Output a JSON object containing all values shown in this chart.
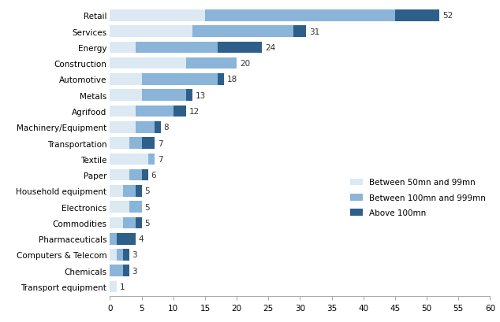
{
  "categories": [
    "Retail",
    "Services",
    "Energy",
    "Construction",
    "Automotive",
    "Metals",
    "Agrifood",
    "Machinery/Equipment",
    "Transportation",
    "Textile",
    "Paper",
    "Household equipment",
    "Electronics",
    "Commodities",
    "Pharmaceuticals",
    "Computers & Telecom",
    "Chemicals",
    "Transport equipment"
  ],
  "totals": [
    52,
    31,
    24,
    20,
    18,
    13,
    12,
    8,
    7,
    7,
    6,
    5,
    5,
    5,
    4,
    3,
    3,
    1
  ],
  "seg1": [
    15,
    13,
    4,
    12,
    5,
    5,
    4,
    4,
    3,
    6,
    3,
    2,
    3,
    2,
    0,
    1,
    0,
    1
  ],
  "seg2": [
    30,
    16,
    13,
    8,
    12,
    7,
    6,
    3,
    2,
    1,
    2,
    2,
    2,
    2,
    1,
    1,
    2,
    0
  ],
  "seg3": [
    7,
    2,
    7,
    0,
    1,
    1,
    2,
    1,
    2,
    0,
    1,
    1,
    0,
    1,
    3,
    1,
    1,
    0
  ],
  "color1": "#dce9f3",
  "color2": "#8ab4d8",
  "color3": "#2e5f8a",
  "legend_labels": [
    "Between 50mn and 99mn",
    "Between 100mn and 999mn",
    "Above 100mn"
  ],
  "xlim": [
    0,
    60
  ],
  "xticks": [
    0,
    5,
    10,
    15,
    20,
    25,
    30,
    35,
    40,
    45,
    50,
    55,
    60
  ],
  "bar_height": 0.72,
  "annotation_fontsize": 7.5,
  "label_fontsize": 7.5,
  "tick_fontsize": 7.5
}
